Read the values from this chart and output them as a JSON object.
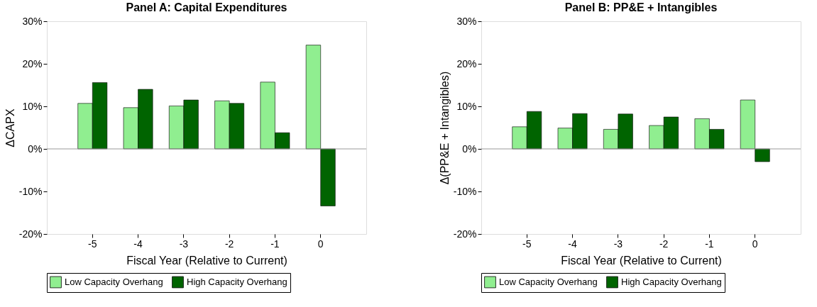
{
  "chart_data": [
    {
      "type": "bar",
      "title": "Panel A: Capital Expenditures",
      "xlabel": "Fiscal Year (Relative to Current)",
      "ylabel": "ΔCAPX",
      "categories": [
        "-5",
        "-4",
        "-3",
        "-2",
        "-1",
        "0"
      ],
      "series": [
        {
          "name": "Low Capacity Overhang",
          "color": "#90ee90",
          "values": [
            10.7,
            9.7,
            10.1,
            11.3,
            15.7,
            24.4
          ]
        },
        {
          "name": "High Capacity Overhang",
          "color": "#006400",
          "values": [
            15.6,
            14.0,
            11.5,
            10.7,
            3.8,
            -13.4
          ]
        }
      ],
      "ylim": [
        -20,
        30
      ],
      "yticks": [
        {
          "value": -20,
          "label": "-20%"
        },
        {
          "value": -10,
          "label": "-10%"
        },
        {
          "value": 0,
          "label": "0%"
        },
        {
          "value": 10,
          "label": "10%"
        },
        {
          "value": 20,
          "label": "20%"
        },
        {
          "value": 30,
          "label": "30%"
        }
      ],
      "ref_lines": [
        {
          "axis": "y",
          "value": 0,
          "color": "#999999"
        }
      ],
      "legend": "bottom",
      "grid": false
    },
    {
      "type": "bar",
      "title": "Panel B: PP&E + Intangibles",
      "xlabel": "Fiscal Year (Relative to Current)",
      "ylabel": "Δ(PP&E + Intangibles)",
      "categories": [
        "-5",
        "-4",
        "-3",
        "-2",
        "-1",
        "0"
      ],
      "series": [
        {
          "name": "Low Capacity Overhang",
          "color": "#90ee90",
          "values": [
            5.2,
            4.9,
            4.6,
            5.5,
            7.1,
            11.5
          ]
        },
        {
          "name": "High Capacity Overhang",
          "color": "#006400",
          "values": [
            8.8,
            8.3,
            8.2,
            7.5,
            4.6,
            -3.0
          ]
        }
      ],
      "ylim": [
        -20,
        30
      ],
      "yticks": [
        {
          "value": -20,
          "label": "-20%"
        },
        {
          "value": -10,
          "label": "-10%"
        },
        {
          "value": 0,
          "label": "0%"
        },
        {
          "value": 10,
          "label": "10%"
        },
        {
          "value": 20,
          "label": "20%"
        },
        {
          "value": 30,
          "label": "30%"
        }
      ],
      "ref_lines": [
        {
          "axis": "y",
          "value": 0,
          "color": "#999999"
        }
      ],
      "legend": "bottom",
      "grid": false
    }
  ]
}
